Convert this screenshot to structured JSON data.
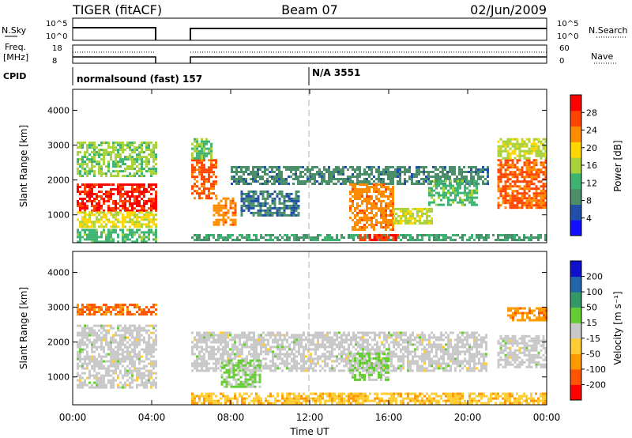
{
  "header": {
    "radar": "TIGER (fitACF)",
    "beam": "Beam 07",
    "date": "02/Jun/2009"
  },
  "summary_panels": {
    "nsky": {
      "label": "N.Sky",
      "ticks": [
        "10^5",
        "10^0"
      ]
    },
    "nsearch": {
      "label": "N.Search",
      "ticks": [
        "10^5",
        "10^0"
      ]
    },
    "freq": {
      "label_line1": "Freq.",
      "label_line2": "[MHz]",
      "ticks": [
        "18",
        "8"
      ]
    },
    "nave": {
      "label": "Nave",
      "ticks": [
        "60",
        "0"
      ]
    },
    "cpid": {
      "label": "CPID",
      "segments": [
        "normalsound (fast) 157",
        "N/A 3551"
      ]
    }
  },
  "colors": {
    "power": [
      "#1010ff",
      "#1f4fa8",
      "#4a8f6a",
      "#3cb371",
      "#a8d13a",
      "#ffd700",
      "#ff8c00",
      "#ff4500",
      "#ff0000"
    ],
    "velocity": [
      "#ff0000",
      "#ff5500",
      "#ff9900",
      "#ffcc33",
      "#c8c8c8",
      "#66cc33",
      "#339966",
      "#2266aa",
      "#1010cc"
    ],
    "ground_scatter": "#c8c8c8",
    "noon_line": "#b0b0b0"
  },
  "chart_data": [
    {
      "type": "heatmap",
      "name": "power",
      "ylabel": "Slant Range [km]",
      "yticks": [
        1000,
        2000,
        3000,
        4000
      ],
      "ylim": [
        200,
        4600
      ],
      "colorbar": {
        "label": "Power [dB]",
        "ticks": [
          "4",
          "8",
          "12",
          "16",
          "20",
          "24",
          "28"
        ],
        "range": [
          0,
          30
        ]
      },
      "echo_regions": [
        {
          "t0": 0.2,
          "t1": 4.2,
          "r0": 1100,
          "r1": 1900,
          "level": 27
        },
        {
          "t0": 0.2,
          "t1": 4.2,
          "r0": 650,
          "r1": 1100,
          "level": 17
        },
        {
          "t0": 0.2,
          "t1": 4.2,
          "r0": 2100,
          "r1": 3100,
          "level": 14
        },
        {
          "t0": 0.2,
          "t1": 4.2,
          "r0": 250,
          "r1": 600,
          "level": 12
        },
        {
          "t0": 6.0,
          "t1": 7.3,
          "r0": 1500,
          "r1": 2600,
          "level": 24
        },
        {
          "t0": 7.1,
          "t1": 8.2,
          "r0": 700,
          "r1": 1500,
          "level": 22
        },
        {
          "t0": 6.0,
          "t1": 7.0,
          "r0": 2600,
          "r1": 3200,
          "level": 13
        },
        {
          "t0": 8.0,
          "t1": 21.0,
          "r0": 1900,
          "r1": 2400,
          "level": 8
        },
        {
          "t0": 8.5,
          "t1": 11.5,
          "r0": 1000,
          "r1": 1700,
          "level": 7
        },
        {
          "t0": 14.0,
          "t1": 16.2,
          "r0": 600,
          "r1": 1900,
          "level": 22
        },
        {
          "t0": 16.2,
          "t1": 18.2,
          "r0": 750,
          "r1": 1200,
          "level": 16
        },
        {
          "t0": 18.0,
          "t1": 20.5,
          "r0": 1300,
          "r1": 2000,
          "level": 12
        },
        {
          "t0": 21.5,
          "t1": 24.0,
          "r0": 1200,
          "r1": 2600,
          "level": 24
        },
        {
          "t0": 21.5,
          "t1": 24.0,
          "r0": 2600,
          "r1": 3200,
          "level": 16
        },
        {
          "t0": 6.0,
          "t1": 24.0,
          "r0": 250,
          "r1": 450,
          "level": 10
        },
        {
          "t0": 14.5,
          "t1": 16.5,
          "r0": 250,
          "r1": 450,
          "level": 26
        }
      ]
    },
    {
      "type": "heatmap",
      "name": "velocity",
      "xlabel": "Time UT",
      "xticks": [
        "00:00",
        "04:00",
        "08:00",
        "12:00",
        "16:00",
        "20:00",
        "00:00"
      ],
      "xlim": [
        0,
        24
      ],
      "ylabel": "Slant Range [km]",
      "yticks": [
        1000,
        2000,
        3000,
        4000
      ],
      "ylim": [
        200,
        4600
      ],
      "colorbar": {
        "label": "Velocity [m s⁻¹]",
        "ticks": [
          "-200",
          "-100",
          "-50",
          "-15",
          "15",
          "50",
          "100",
          "200"
        ],
        "range": [
          -250,
          250
        ]
      },
      "echo_regions": [
        {
          "t0": 0.2,
          "t1": 4.2,
          "r0": 700,
          "r1": 2500,
          "level": 0
        },
        {
          "t0": 0.2,
          "t1": 4.2,
          "r0": 2800,
          "r1": 3100,
          "level": -150
        },
        {
          "t0": 6.0,
          "t1": 21.0,
          "r0": 1200,
          "r1": 2300,
          "level": 0
        },
        {
          "t0": 7.5,
          "t1": 9.5,
          "r0": 700,
          "r1": 1500,
          "level": 40
        },
        {
          "t0": 6.0,
          "t1": 24.0,
          "r0": 250,
          "r1": 550,
          "level": -70
        },
        {
          "t0": 21.5,
          "t1": 24.0,
          "r0": 1300,
          "r1": 2200,
          "level": 0
        },
        {
          "t0": 22.0,
          "t1": 24.0,
          "r0": 2600,
          "r1": 3000,
          "level": -120
        },
        {
          "t0": 14.0,
          "t1": 16.0,
          "r0": 900,
          "r1": 1700,
          "level": 30
        }
      ]
    }
  ]
}
